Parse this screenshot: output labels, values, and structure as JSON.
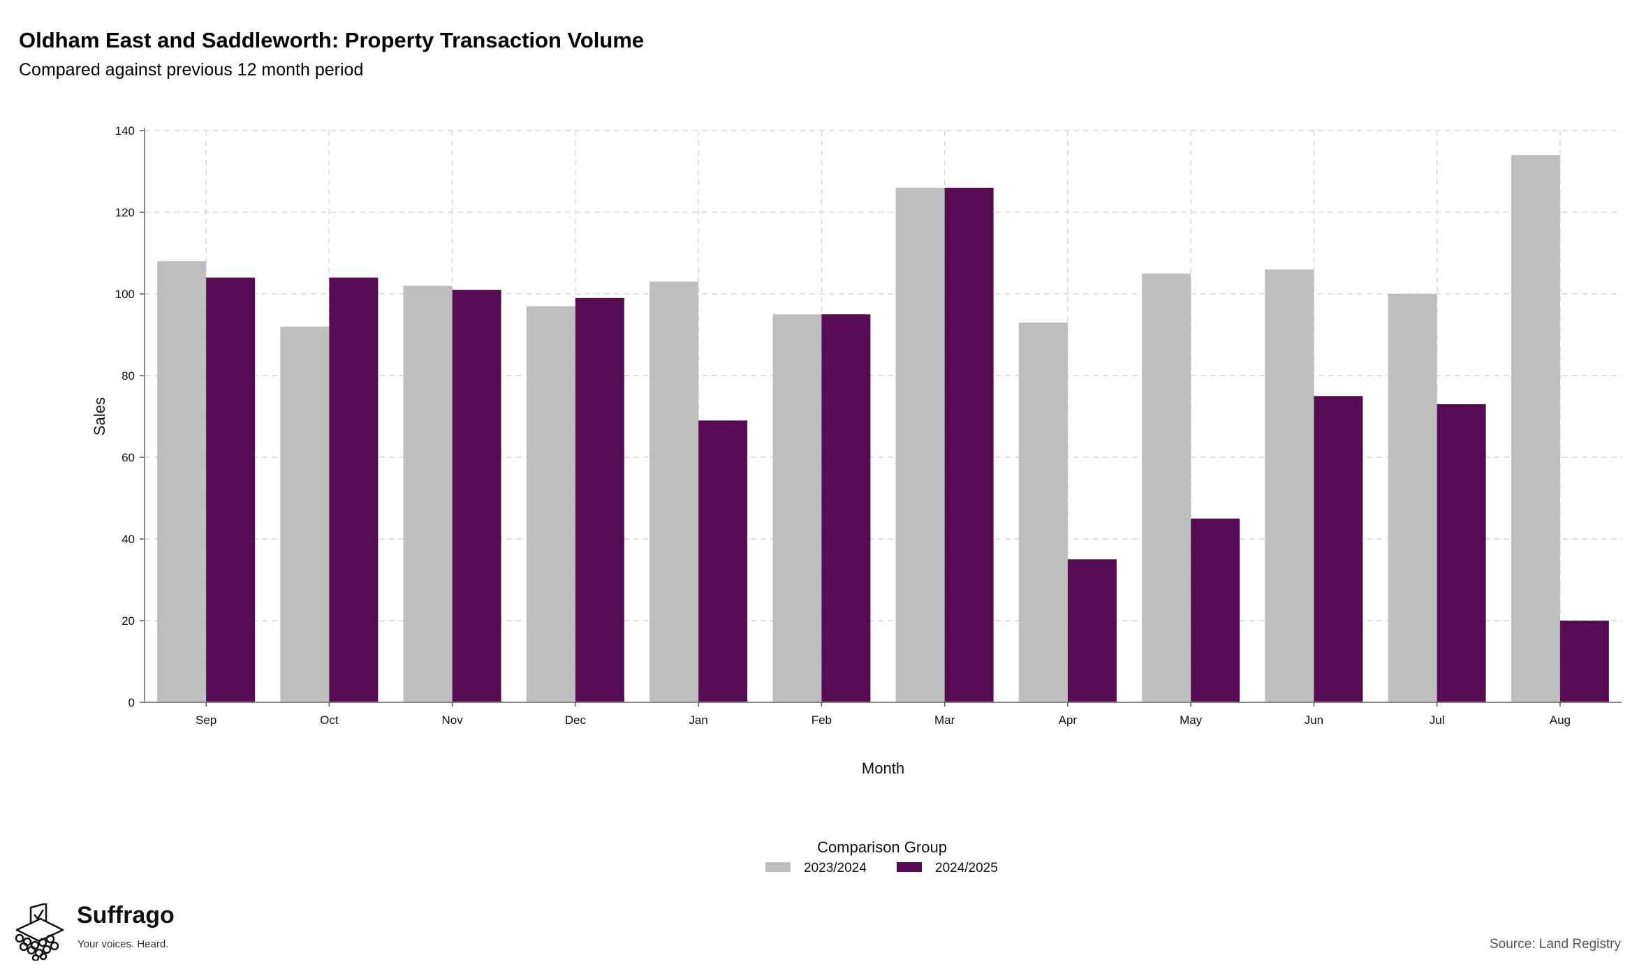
{
  "header": {
    "title": "Oldham East and Saddleworth: Property Transaction Volume",
    "subtitle": "Compared against previous 12 month period"
  },
  "chart_data": {
    "type": "bar",
    "categories": [
      "Sep",
      "Oct",
      "Nov",
      "Dec",
      "Jan",
      "Feb",
      "Mar",
      "Apr",
      "May",
      "Jun",
      "Jul",
      "Aug"
    ],
    "series": [
      {
        "name": "2023/2024",
        "color": "#bebebe",
        "values": [
          108,
          92,
          102,
          97,
          103,
          95,
          126,
          93,
          105,
          106,
          100,
          134
        ]
      },
      {
        "name": "2024/2025",
        "color": "#560c52",
        "values": [
          104,
          104,
          101,
          99,
          69,
          95,
          126,
          35,
          45,
          75,
          73,
          20
        ]
      }
    ],
    "xlabel": "Month",
    "ylabel": "Sales",
    "ylim": [
      0,
      140
    ],
    "yticks": [
      0,
      20,
      40,
      60,
      80,
      100,
      120,
      140
    ],
    "grid": true,
    "legend_title": "Comparison Group",
    "legend_position": "bottom"
  },
  "footer": {
    "source": "Source: Land Registry",
    "brand_name": "Suffrago",
    "brand_tagline": "Your voices. Heard."
  }
}
